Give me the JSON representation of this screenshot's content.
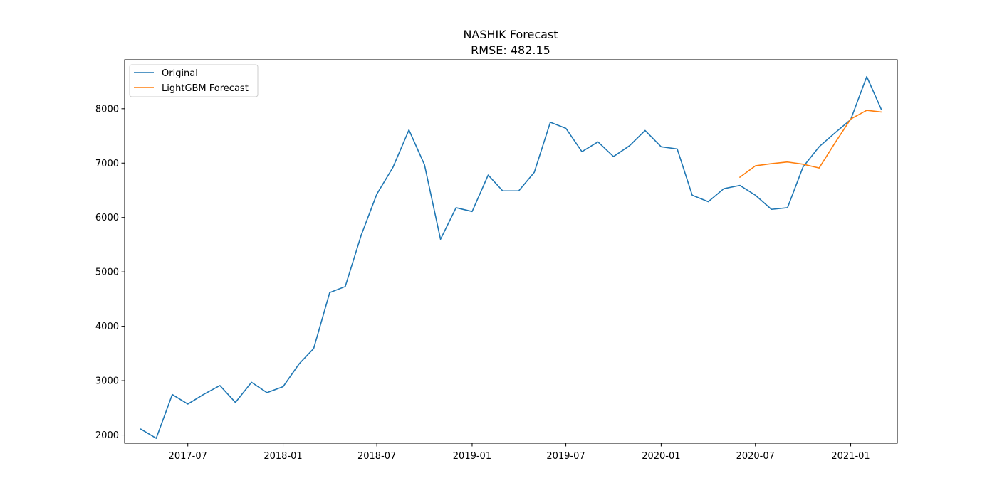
{
  "chart_data": {
    "type": "line",
    "title": "NASHIK Forecast",
    "subtitle": "RMSE: 482.15",
    "xlabel": "",
    "ylabel": "",
    "x_axis_type": "date",
    "xlim": [
      "2017-03-01",
      "2021-04-01"
    ],
    "ylim": [
      1850,
      8900
    ],
    "x_ticks": [
      "2017-07-01",
      "2018-01-01",
      "2018-07-01",
      "2019-01-01",
      "2019-07-01",
      "2020-01-01",
      "2020-07-01",
      "2021-01-01"
    ],
    "x_tick_labels": [
      "2017-07",
      "2018-01",
      "2018-07",
      "2019-01",
      "2019-07",
      "2020-01",
      "2020-07",
      "2021-01"
    ],
    "y_ticks": [
      2000,
      3000,
      4000,
      5000,
      6000,
      7000,
      8000
    ],
    "y_tick_labels": [
      "2000",
      "3000",
      "4000",
      "5000",
      "6000",
      "7000",
      "8000"
    ],
    "grid": false,
    "legend": "top-left",
    "series": [
      {
        "name": "Original",
        "color": "#1f77b4",
        "x": [
          "2017-04-01",
          "2017-05-01",
          "2017-06-01",
          "2017-07-01",
          "2017-08-01",
          "2017-09-01",
          "2017-10-01",
          "2017-11-01",
          "2017-12-01",
          "2018-01-01",
          "2018-02-01",
          "2018-03-01",
          "2018-04-01",
          "2018-05-01",
          "2018-06-01",
          "2018-07-01",
          "2018-08-01",
          "2018-09-01",
          "2018-10-01",
          "2018-11-01",
          "2018-12-01",
          "2019-01-01",
          "2019-02-01",
          "2019-03-01",
          "2019-04-01",
          "2019-05-01",
          "2019-06-01",
          "2019-07-01",
          "2019-08-01",
          "2019-09-01",
          "2019-10-01",
          "2019-11-01",
          "2019-12-01",
          "2020-01-01",
          "2020-02-01",
          "2020-03-01",
          "2020-04-01",
          "2020-05-01",
          "2020-06-01",
          "2020-07-01",
          "2020-08-01",
          "2020-09-01",
          "2020-10-01",
          "2020-11-01",
          "2020-12-01",
          "2021-01-01",
          "2021-02-01",
          "2021-03-01"
        ],
        "values": [
          2110,
          1940,
          2745,
          2570,
          2750,
          2910,
          2600,
          2970,
          2780,
          2890,
          3310,
          3590,
          4620,
          4730,
          5680,
          6430,
          6920,
          7610,
          6970,
          5600,
          6180,
          6110,
          6780,
          6490,
          6490,
          6830,
          7750,
          7640,
          7210,
          7390,
          7120,
          7320,
          7600,
          7300,
          7260,
          6410,
          6290,
          6530,
          6590,
          6410,
          6150,
          6180,
          6930,
          7300,
          7550,
          7800,
          8590,
          7990
        ]
      },
      {
        "name": "LightGBM Forecast",
        "color": "#ff7f0e",
        "x": [
          "2020-06-01",
          "2020-07-01",
          "2020-08-01",
          "2020-09-01",
          "2020-10-01",
          "2020-11-01",
          "2020-12-01",
          "2021-01-01",
          "2021-02-01",
          "2021-03-01"
        ],
        "values": [
          6740,
          6950,
          6990,
          7020,
          6980,
          6910,
          7360,
          7810,
          7970,
          7940
        ]
      }
    ]
  }
}
